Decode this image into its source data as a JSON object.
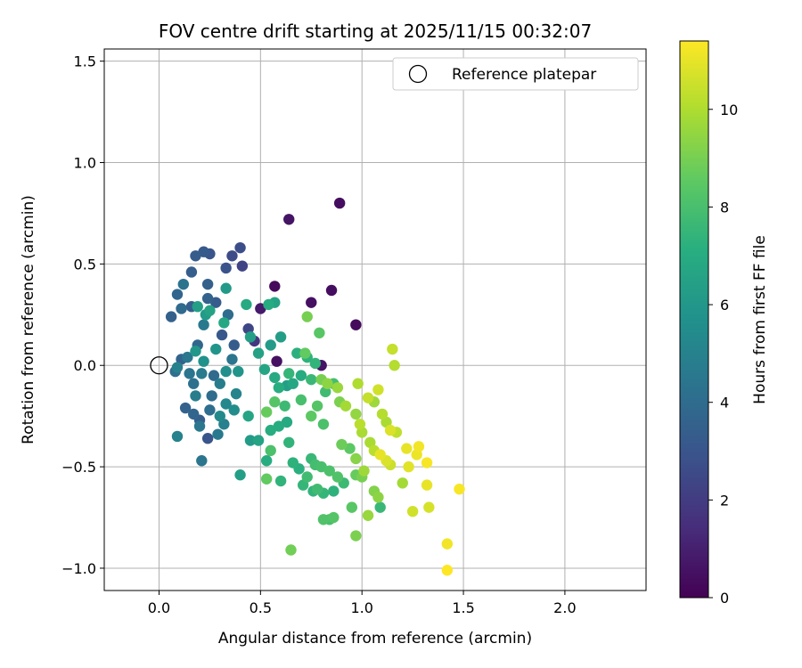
{
  "chart_data": {
    "type": "scatter",
    "title": "FOV centre drift starting at 2025/11/15 00:32:07",
    "xlabel": "Angular distance from reference (arcmin)",
    "ylabel": "Rotation from reference (arcmin)",
    "xlim": [
      -0.27,
      2.4
    ],
    "ylim": [
      -1.11,
      1.56
    ],
    "xticks": [
      "0.0",
      "0.5",
      "1.0",
      "1.5",
      "2.0"
    ],
    "xtick_values": [
      0,
      0.5,
      1.0,
      1.5,
      2.0
    ],
    "yticks": [
      "−1.0",
      "−0.5",
      "0.0",
      "0.5",
      "1.0",
      "1.5"
    ],
    "ytick_values": [
      -1.0,
      -0.5,
      0.0,
      0.5,
      1.0,
      1.5
    ],
    "grid": true,
    "legend": {
      "position": "top-right",
      "entries": [
        "Reference platepar"
      ]
    },
    "reference_point": {
      "x": 0,
      "y": 0
    },
    "colorbar": {
      "label": "Hours from first FF file",
      "min": 0,
      "max": 11.4,
      "ticks": [
        "0",
        "2",
        "4",
        "6",
        "8",
        "10"
      ],
      "tick_values": [
        0,
        2,
        4,
        6,
        8,
        10
      ],
      "colormap": "viridis"
    },
    "points": [
      [
        0.89,
        0.8,
        0.4
      ],
      [
        0.64,
        0.72,
        0.6
      ],
      [
        0.57,
        0.39,
        0.3
      ],
      [
        0.75,
        0.31,
        0.5
      ],
      [
        0.85,
        0.37,
        0.4
      ],
      [
        0.97,
        0.2,
        0.3
      ],
      [
        0.5,
        0.28,
        0.8
      ],
      [
        0.58,
        0.02,
        0.5
      ],
      [
        0.8,
        0.0,
        0.6
      ],
      [
        0.47,
        0.12,
        1.8
      ],
      [
        0.44,
        0.18,
        2.4
      ],
      [
        0.4,
        0.58,
        2.7
      ],
      [
        0.33,
        0.48,
        2.9
      ],
      [
        0.36,
        0.54,
        2.6
      ],
      [
        0.41,
        0.49,
        2.3
      ],
      [
        0.25,
        0.55,
        3.0
      ],
      [
        0.22,
        0.56,
        3.2
      ],
      [
        0.18,
        0.54,
        3.3
      ],
      [
        0.16,
        0.46,
        3.4
      ],
      [
        0.24,
        0.4,
        3.5
      ],
      [
        0.12,
        0.4,
        4.3
      ],
      [
        0.09,
        0.35,
        3.7
      ],
      [
        0.06,
        0.24,
        3.5
      ],
      [
        0.11,
        0.28,
        3.9
      ],
      [
        0.16,
        0.29,
        3.4
      ],
      [
        0.24,
        0.33,
        3.6
      ],
      [
        0.28,
        0.31,
        3.3
      ],
      [
        0.34,
        0.25,
        4.0
      ],
      [
        0.31,
        0.15,
        3.1
      ],
      [
        0.37,
        0.1,
        3.3
      ],
      [
        0.22,
        0.2,
        4.6
      ],
      [
        0.19,
        0.1,
        3.8
      ],
      [
        0.14,
        0.04,
        4.5
      ],
      [
        0.11,
        0.03,
        3.6
      ],
      [
        0.09,
        -0.01,
        4.9
      ],
      [
        0.08,
        -0.03,
        4.1
      ],
      [
        0.15,
        -0.04,
        4.4
      ],
      [
        0.21,
        -0.04,
        4.7
      ],
      [
        0.27,
        -0.05,
        3.9
      ],
      [
        0.17,
        -0.09,
        4.2
      ],
      [
        0.26,
        -0.15,
        4.0
      ],
      [
        0.18,
        -0.15,
        4.8
      ],
      [
        0.13,
        -0.21,
        3.6
      ],
      [
        0.17,
        -0.24,
        3.7
      ],
      [
        0.25,
        -0.22,
        4.1
      ],
      [
        0.2,
        -0.27,
        3.4
      ],
      [
        0.24,
        -0.36,
        3.0
      ],
      [
        0.2,
        -0.3,
        4.5
      ],
      [
        0.09,
        -0.35,
        5.0
      ],
      [
        0.21,
        -0.47,
        4.4
      ],
      [
        0.29,
        -0.34,
        4.6
      ],
      [
        0.32,
        -0.29,
        4.9
      ],
      [
        0.33,
        -0.19,
        5.3
      ],
      [
        0.3,
        -0.25,
        5.4
      ],
      [
        0.37,
        -0.22,
        5.5
      ],
      [
        0.38,
        -0.14,
        5.1
      ],
      [
        0.3,
        -0.09,
        4.8
      ],
      [
        0.33,
        -0.03,
        5.6
      ],
      [
        0.36,
        0.03,
        4.4
      ],
      [
        0.39,
        -0.03,
        5.9
      ],
      [
        0.22,
        0.02,
        5.7
      ],
      [
        0.28,
        0.08,
        5.9
      ],
      [
        0.18,
        0.07,
        6.0
      ],
      [
        0.23,
        0.25,
        6.2
      ],
      [
        0.19,
        0.29,
        6.4
      ],
      [
        0.25,
        0.27,
        6.6
      ],
      [
        0.33,
        0.38,
        6.1
      ],
      [
        0.32,
        0.21,
        6.8
      ],
      [
        0.45,
        0.14,
        6.4
      ],
      [
        0.43,
        0.3,
        6.9
      ],
      [
        0.54,
        0.3,
        7.0
      ],
      [
        0.57,
        0.31,
        6.6
      ],
      [
        0.49,
        0.06,
        6.5
      ],
      [
        0.55,
        0.1,
        6.2
      ],
      [
        0.6,
        0.14,
        6.3
      ],
      [
        0.52,
        -0.02,
        6.7
      ],
      [
        0.57,
        -0.06,
        6.9
      ],
      [
        0.59,
        -0.11,
        7.1
      ],
      [
        0.63,
        -0.1,
        6.4
      ],
      [
        0.66,
        -0.09,
        6.8
      ],
      [
        0.7,
        -0.05,
        7.0
      ],
      [
        0.73,
        0.04,
        7.3
      ],
      [
        0.68,
        0.06,
        7.2
      ],
      [
        0.64,
        -0.04,
        7.5
      ],
      [
        0.77,
        0.01,
        7.4
      ],
      [
        0.75,
        -0.07,
        7.6
      ],
      [
        0.82,
        -0.13,
        7.8
      ],
      [
        0.86,
        -0.09,
        7.9
      ],
      [
        0.63,
        -0.28,
        6.9
      ],
      [
        0.59,
        -0.3,
        7.0
      ],
      [
        0.55,
        -0.32,
        7.1
      ],
      [
        0.49,
        -0.37,
        6.6
      ],
      [
        0.45,
        -0.37,
        6.2
      ],
      [
        0.4,
        -0.54,
        6.4
      ],
      [
        0.44,
        -0.25,
        6.7
      ],
      [
        0.53,
        -0.47,
        7.1
      ],
      [
        0.64,
        -0.38,
        7.4
      ],
      [
        0.66,
        -0.48,
        7.3
      ],
      [
        0.69,
        -0.51,
        7.2
      ],
      [
        0.71,
        -0.59,
        7.5
      ],
      [
        0.73,
        -0.55,
        7.8
      ],
      [
        0.75,
        -0.46,
        7.6
      ],
      [
        0.77,
        -0.49,
        7.9
      ],
      [
        0.8,
        -0.5,
        8.0
      ],
      [
        0.84,
        -0.52,
        8.1
      ],
      [
        0.88,
        -0.55,
        8.2
      ],
      [
        0.91,
        -0.58,
        7.7
      ],
      [
        0.86,
        -0.62,
        7.3
      ],
      [
        0.81,
        -0.63,
        7.5
      ],
      [
        0.78,
        -0.61,
        7.8
      ],
      [
        0.76,
        -0.62,
        7.4
      ],
      [
        0.81,
        -0.76,
        8.2
      ],
      [
        0.86,
        -0.75,
        8.3
      ],
      [
        0.84,
        -0.76,
        8.0
      ],
      [
        0.95,
        -0.7,
        8.4
      ],
      [
        0.97,
        -0.54,
        8.7
      ],
      [
        1.0,
        -0.55,
        9.0
      ],
      [
        1.06,
        -0.62,
        9.2
      ],
      [
        1.08,
        -0.65,
        9.4
      ],
      [
        1.09,
        -0.7,
        7.6
      ],
      [
        1.03,
        -0.74,
        9.6
      ],
      [
        0.97,
        -0.84,
        9.1
      ],
      [
        0.9,
        -0.39,
        8.8
      ],
      [
        0.94,
        -0.41,
        8.5
      ],
      [
        0.97,
        -0.46,
        9.3
      ],
      [
        1.01,
        -0.52,
        9.7
      ],
      [
        0.6,
        -0.57,
        7.4
      ],
      [
        0.53,
        -0.56,
        8.6
      ],
      [
        0.65,
        -0.91,
        8.9
      ],
      [
        0.72,
        0.06,
        8.6
      ],
      [
        0.73,
        0.24,
        9.0
      ],
      [
        0.79,
        0.16,
        8.4
      ],
      [
        0.75,
        -0.25,
        8.5
      ],
      [
        0.78,
        -0.2,
        8.3
      ],
      [
        0.81,
        -0.29,
        8.1
      ],
      [
        0.7,
        -0.17,
        8.0
      ],
      [
        0.62,
        -0.2,
        7.7
      ],
      [
        0.57,
        -0.18,
        8.3
      ],
      [
        0.53,
        -0.23,
        8.7
      ],
      [
        0.55,
        -0.42,
        8.1
      ],
      [
        0.8,
        -0.07,
        9.0
      ],
      [
        0.83,
        -0.09,
        9.4
      ],
      [
        0.88,
        -0.11,
        9.6
      ],
      [
        0.89,
        -0.18,
        9.1
      ],
      [
        0.92,
        -0.2,
        9.8
      ],
      [
        0.97,
        -0.24,
        9.5
      ],
      [
        0.99,
        -0.29,
        10.2
      ],
      [
        1.0,
        -0.33,
        9.9
      ],
      [
        0.98,
        -0.09,
        10.0
      ],
      [
        1.03,
        -0.16,
        10.4
      ],
      [
        1.06,
        -0.18,
        9.7
      ],
      [
        1.08,
        -0.12,
        10.6
      ],
      [
        1.1,
        -0.24,
        10.1
      ],
      [
        1.12,
        -0.28,
        9.9
      ],
      [
        1.14,
        -0.32,
        10.8
      ],
      [
        1.17,
        -0.33,
        10.3
      ],
      [
        1.15,
        0.08,
        10.4
      ],
      [
        1.16,
        0.0,
        10.1
      ],
      [
        1.2,
        -0.58,
        9.8
      ],
      [
        1.22,
        -0.41,
        11.0
      ],
      [
        1.23,
        -0.5,
        10.9
      ],
      [
        1.25,
        -0.72,
        10.6
      ],
      [
        1.27,
        -0.44,
        11.1
      ],
      [
        1.28,
        -0.4,
        11.2
      ],
      [
        1.32,
        -0.48,
        11.3
      ],
      [
        1.32,
        -0.59,
        11.0
      ],
      [
        1.33,
        -0.7,
        10.7
      ],
      [
        1.42,
        -0.88,
        11.2
      ],
      [
        1.42,
        -1.01,
        11.4
      ],
      [
        1.48,
        -0.61,
        11.3
      ],
      [
        1.09,
        -0.44,
        11.0
      ],
      [
        1.12,
        -0.47,
        10.8
      ],
      [
        1.14,
        -0.49,
        10.5
      ],
      [
        1.06,
        -0.42,
        10.2
      ],
      [
        1.04,
        -0.38,
        9.9
      ]
    ]
  }
}
